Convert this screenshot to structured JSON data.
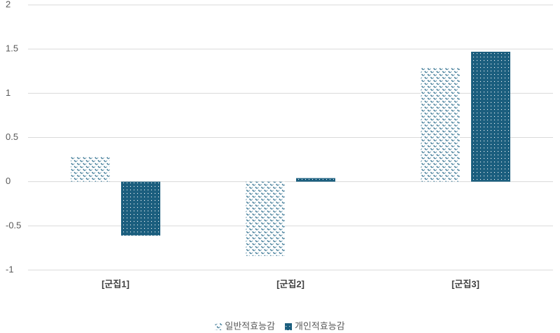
{
  "chart_data": {
    "type": "bar",
    "categories": [
      "[군집1]",
      "[군집2]",
      "[군집3]"
    ],
    "series": [
      {
        "name": "일반적효능감",
        "color": "#2e6e8e",
        "values": [
          0.28,
          -0.84,
          1.29
        ]
      },
      {
        "name": "개인적효능감",
        "color": "#1b5e7e",
        "values": [
          -0.61,
          0.04,
          1.47
        ]
      }
    ],
    "ylim": [
      -1,
      2
    ],
    "yticks": [
      -1,
      -0.5,
      0,
      0.5,
      1,
      1.5,
      2
    ],
    "grid": true,
    "legend": "bottom"
  }
}
